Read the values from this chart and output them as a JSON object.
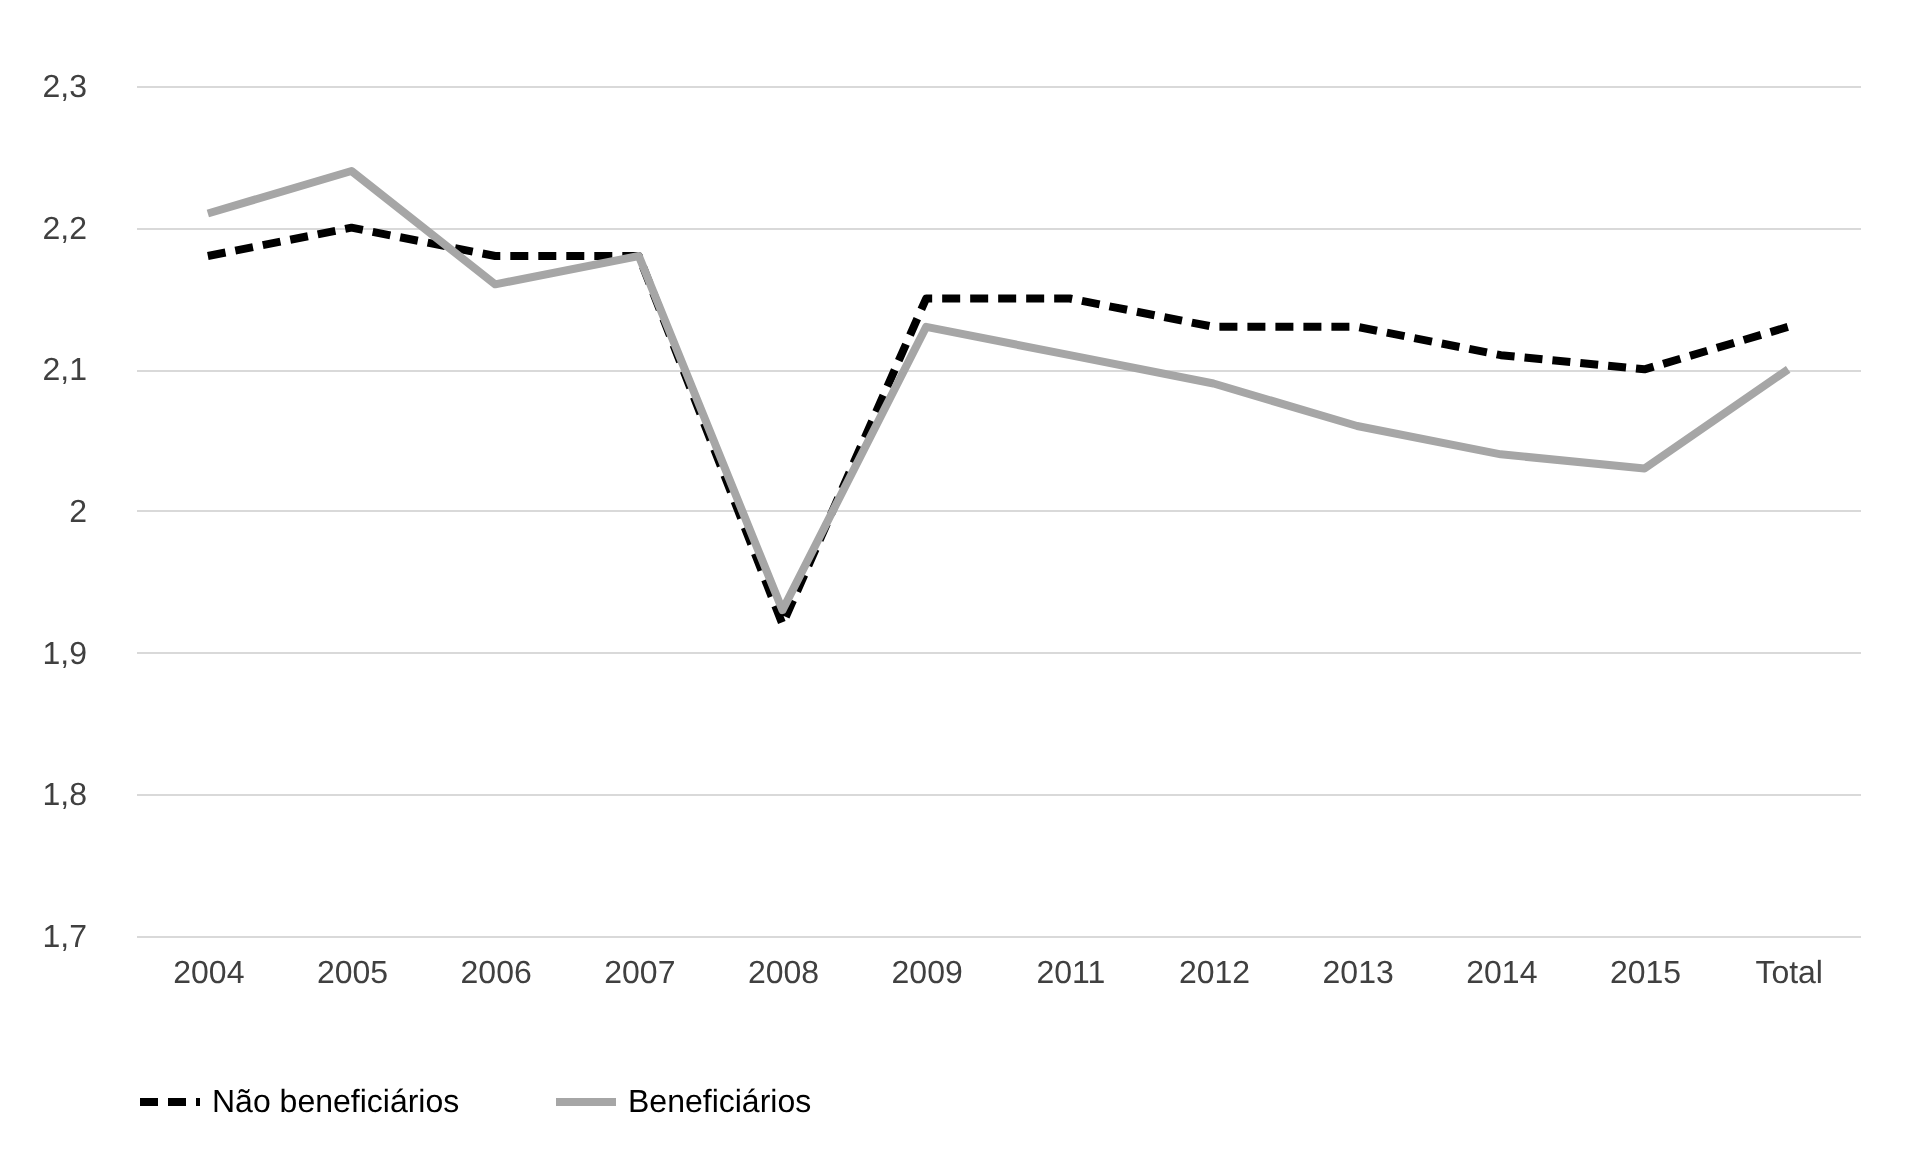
{
  "chart_data": {
    "type": "line",
    "categories": [
      "2004",
      "2005",
      "2006",
      "2007",
      "2008",
      "2009",
      "2011",
      "2012",
      "2013",
      "2014",
      "2015",
      "Total"
    ],
    "series": [
      {
        "name": "Não beneficiários",
        "color": "#000000",
        "line_style": "dashed",
        "values": [
          2.18,
          2.2,
          2.18,
          2.18,
          1.92,
          2.15,
          2.15,
          2.13,
          2.13,
          2.11,
          2.1,
          2.13
        ]
      },
      {
        "name": "Beneficiários",
        "color": "#a6a6a6",
        "line_style": "solid",
        "values": [
          2.21,
          2.24,
          2.16,
          2.18,
          1.93,
          2.13,
          2.11,
          2.09,
          2.06,
          2.04,
          2.03,
          2.1
        ]
      }
    ],
    "ylim": [
      1.7,
      2.3
    ],
    "yticks": [
      {
        "value": 1.7,
        "label": "1,7"
      },
      {
        "value": 1.8,
        "label": "1,8"
      },
      {
        "value": 1.9,
        "label": "1,9"
      },
      2,
      {
        "value": 2.1,
        "label": "2,1"
      },
      {
        "value": 2.2,
        "label": "2,2"
      },
      {
        "value": 2.3,
        "label": "2,3"
      }
    ],
    "grid": "y",
    "legend": "bottom",
    "marker": "none"
  }
}
